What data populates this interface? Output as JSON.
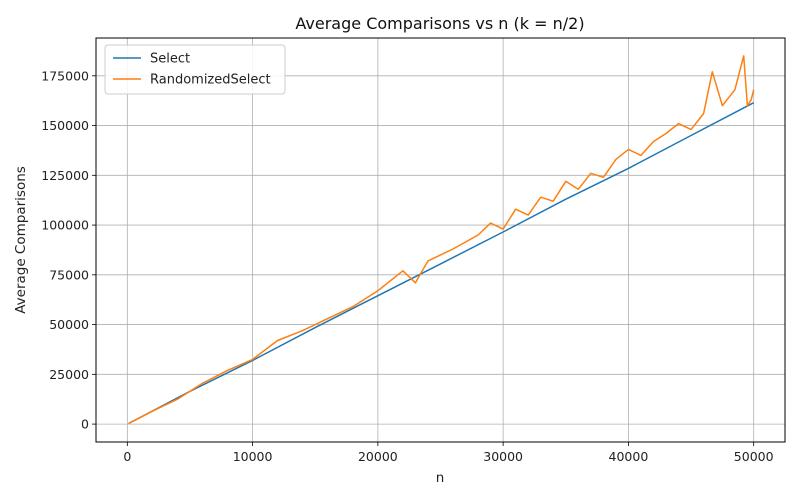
{
  "chart_data": {
    "type": "line",
    "title": "Average Comparisons vs n (k = n/2)",
    "xlabel": "n",
    "ylabel": "Average Comparisons",
    "xlim": [
      -2500,
      52500
    ],
    "ylim": [
      -9000,
      194000
    ],
    "xticks": [
      0,
      10000,
      20000,
      30000,
      40000,
      50000
    ],
    "yticks": [
      0,
      25000,
      50000,
      75000,
      100000,
      125000,
      150000,
      175000
    ],
    "grid": true,
    "legend_position": "top-left",
    "series": [
      {
        "name": "Select",
        "color": "#1f77b4",
        "points": [
          [
            100,
            300
          ],
          [
            5000,
            16500
          ],
          [
            10000,
            32000
          ],
          [
            15000,
            48500
          ],
          [
            20000,
            64500
          ],
          [
            25000,
            80500
          ],
          [
            30000,
            96500
          ],
          [
            35000,
            113000
          ],
          [
            40000,
            128500
          ],
          [
            45000,
            145000
          ],
          [
            50000,
            161500
          ]
        ]
      },
      {
        "name": "RandomizedSelect",
        "color": "#ff7f0e",
        "points": [
          [
            100,
            300
          ],
          [
            2000,
            6500
          ],
          [
            4000,
            12500
          ],
          [
            6000,
            20500
          ],
          [
            8000,
            27000
          ],
          [
            10000,
            32500
          ],
          [
            12000,
            42000
          ],
          [
            14000,
            47000
          ],
          [
            16000,
            53000
          ],
          [
            18000,
            59000
          ],
          [
            20000,
            67000
          ],
          [
            22000,
            77000
          ],
          [
            23000,
            71000
          ],
          [
            24000,
            82000
          ],
          [
            26000,
            88000
          ],
          [
            28000,
            95000
          ],
          [
            29000,
            101000
          ],
          [
            30000,
            98000
          ],
          [
            31000,
            108000
          ],
          [
            32000,
            105000
          ],
          [
            33000,
            114000
          ],
          [
            34000,
            112000
          ],
          [
            35000,
            122000
          ],
          [
            36000,
            118000
          ],
          [
            37000,
            126000
          ],
          [
            38000,
            124000
          ],
          [
            39000,
            133000
          ],
          [
            40000,
            138000
          ],
          [
            41000,
            135000
          ],
          [
            42000,
            142000
          ],
          [
            43000,
            146000
          ],
          [
            44000,
            151000
          ],
          [
            45000,
            148000
          ],
          [
            46000,
            156000
          ],
          [
            46700,
            177000
          ],
          [
            47500,
            160000
          ],
          [
            48500,
            168000
          ],
          [
            49200,
            185000
          ],
          [
            49500,
            160000
          ],
          [
            49800,
            163000
          ],
          [
            50000,
            168000
          ]
        ]
      }
    ]
  }
}
